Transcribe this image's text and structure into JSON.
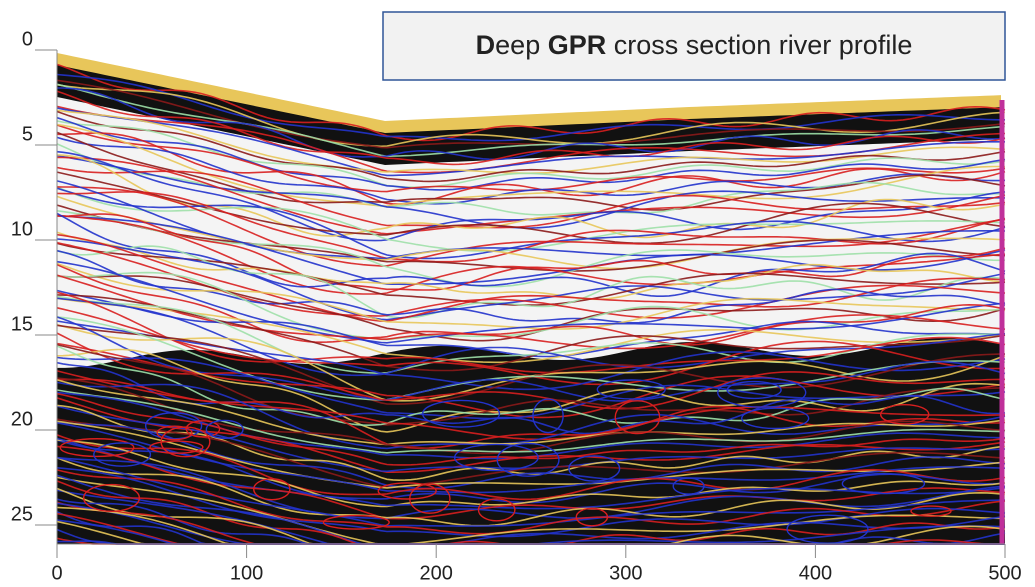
{
  "chart_data": {
    "type": "image",
    "title_parts": [
      "D",
      "eep ",
      "GPR",
      " cross section river profile"
    ],
    "xlim": [
      0,
      500
    ],
    "xticks": [
      0,
      100,
      200,
      300,
      400,
      500
    ],
    "ylim": [
      26,
      0
    ],
    "yticks": [
      0,
      5,
      10,
      15,
      20,
      25
    ]
  }
}
